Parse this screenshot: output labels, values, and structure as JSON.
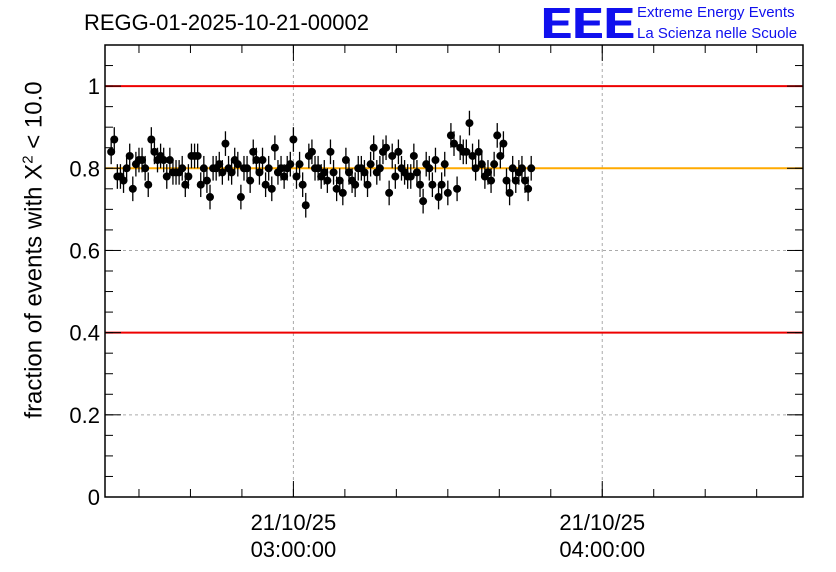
{
  "chart_data": {
    "type": "scatter",
    "title": "REGG-01-2025-10-21-00002",
    "ylabel_prefix": "fraction of events with ",
    "ylabel_chi": "X",
    "ylabel_exp": "2",
    "ylabel_suffix": " < 10.0",
    "ylim": [
      0,
      1.1
    ],
    "yticks": [
      0,
      0.2,
      0.4,
      0.6,
      0.8,
      1
    ],
    "ytick_labels": [
      "0",
      "0.2",
      "0.4",
      "0.6",
      "0.8",
      "1"
    ],
    "xlim_hours": [
      2.39,
      4.65
    ],
    "xticks": [
      {
        "hour": 3.0,
        "date": "21/10/25",
        "time": "03:00:00"
      },
      {
        "hour": 4.0,
        "date": "21/10/25",
        "time": "04:00:00"
      }
    ],
    "x_start_hour": 2.41,
    "x_step_hours": 0.01,
    "reference_lines": [
      {
        "value": 1.0,
        "color": "#ee0000"
      },
      {
        "value": 0.4,
        "color": "#ee0000"
      },
      {
        "value": 0.8,
        "color": "#ffaa00"
      }
    ],
    "grid": true,
    "error": 0.03,
    "values": [
      0.84,
      0.87,
      0.78,
      0.78,
      0.77,
      0.8,
      0.83,
      0.75,
      0.81,
      0.82,
      0.82,
      0.8,
      0.76,
      0.87,
      0.84,
      0.82,
      0.83,
      0.82,
      0.78,
      0.82,
      0.79,
      0.79,
      0.79,
      0.8,
      0.76,
      0.78,
      0.83,
      0.83,
      0.83,
      0.76,
      0.8,
      0.77,
      0.73,
      0.8,
      0.8,
      0.81,
      0.79,
      0.86,
      0.8,
      0.79,
      0.82,
      0.81,
      0.73,
      0.8,
      0.8,
      0.77,
      0.84,
      0.82,
      0.79,
      0.82,
      0.76,
      0.8,
      0.75,
      0.85,
      0.79,
      0.8,
      0.78,
      0.8,
      0.81,
      0.87,
      0.78,
      0.81,
      0.76,
      0.71,
      0.83,
      0.84,
      0.8,
      0.8,
      0.78,
      0.79,
      0.77,
      0.84,
      0.79,
      0.75,
      0.77,
      0.74,
      0.82,
      0.79,
      0.77,
      0.76,
      0.8,
      0.8,
      0.79,
      0.76,
      0.81,
      0.85,
      0.79,
      0.8,
      0.84,
      0.85,
      0.74,
      0.83,
      0.78,
      0.84,
      0.8,
      0.79,
      0.78,
      0.78,
      0.83,
      0.79,
      0.76,
      0.72,
      0.81,
      0.8,
      0.76,
      0.82,
      0.73,
      0.76,
      0.81,
      0.74,
      0.88,
      0.86,
      0.75,
      0.85,
      0.84,
      0.84,
      0.91,
      0.83,
      0.8,
      0.84,
      0.81,
      0.78,
      0.79,
      0.77,
      0.81,
      0.88,
      0.83,
      0.86,
      0.77,
      0.74,
      0.8,
      0.77,
      0.79,
      0.8,
      0.77,
      0.75,
      0.8
    ]
  },
  "logo": {
    "mark": "EEE",
    "line1": "Extreme Energy Events",
    "line2": "La Scienza nelle Scuole"
  }
}
